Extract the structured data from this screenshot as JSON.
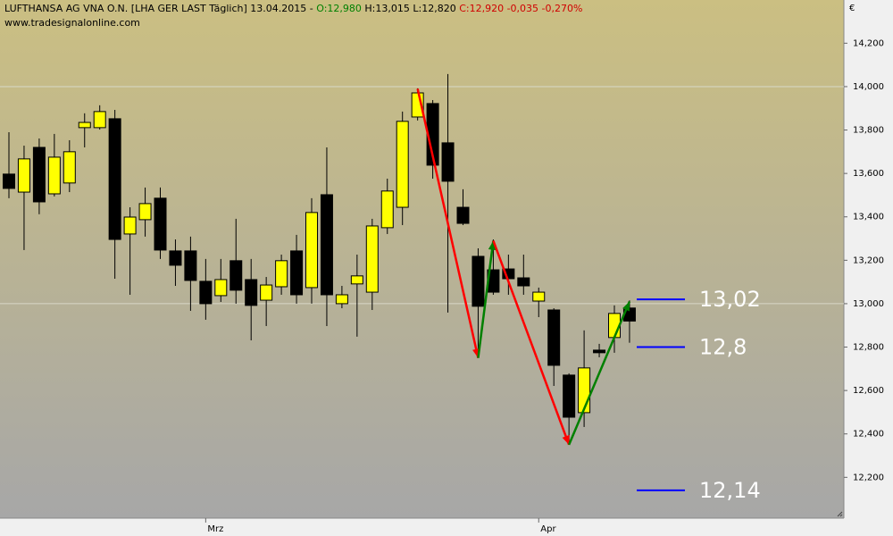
{
  "header": {
    "symbol": "LUFTHANSA AG VNA O.N. [LHA GER LAST Täglich] 13.04.2015 -",
    "open": "O:12,980",
    "high": "H:13,015",
    "low": "L:12,820",
    "change": "C:12,920 -0,035 -0,270%",
    "source": "www.tradesignalonline.com"
  },
  "chart_data": {
    "type": "candlestick",
    "currency": "€",
    "categories": [
      null,
      null,
      null,
      null,
      null,
      null,
      null,
      null,
      null,
      null,
      null,
      null,
      null,
      "Mrz",
      null,
      null,
      null,
      null,
      null,
      null,
      null,
      null,
      null,
      null,
      null,
      null,
      null,
      null,
      null,
      null,
      null,
      null,
      null,
      null,
      null,
      "Apr",
      null,
      null,
      null,
      null,
      null,
      null
    ],
    "open": [
      13.597,
      13.514,
      13.72,
      13.506,
      13.556,
      13.811,
      13.811,
      13.852,
      13.321,
      13.387,
      13.486,
      13.243,
      13.243,
      13.103,
      13.037,
      13.198,
      13.111,
      13.016,
      13.078,
      13.243,
      13.074,
      13.502,
      13.0,
      13.091,
      13.053,
      13.35,
      13.444,
      13.86,
      13.922,
      13.741,
      13.444,
      13.218,
      13.156,
      13.16,
      13.119,
      13.012,
      12.971,
      12.671,
      12.498,
      12.786,
      12.844,
      12.98
    ],
    "high": [
      13.79,
      13.728,
      13.761,
      13.782,
      13.753,
      13.877,
      13.914,
      13.893,
      13.444,
      13.535,
      13.535,
      13.296,
      13.309,
      13.206,
      13.206,
      13.391,
      13.206,
      13.123,
      13.226,
      13.317,
      13.486,
      13.72,
      13.082,
      13.226,
      13.391,
      13.576,
      13.885,
      13.992,
      13.938,
      14.058,
      13.527,
      13.255,
      13.296,
      13.226,
      13.226,
      13.074,
      12.979,
      12.679,
      12.877,
      12.815,
      12.992,
      13.015
    ],
    "low": [
      13.486,
      13.247,
      13.412,
      13.494,
      13.514,
      13.72,
      13.802,
      13.115,
      13.041,
      13.309,
      13.206,
      13.082,
      12.967,
      12.926,
      13.008,
      13.0,
      12.831,
      12.897,
      13.041,
      13.0,
      13.0,
      12.897,
      12.979,
      12.848,
      12.971,
      13.321,
      13.362,
      13.844,
      13.576,
      12.959,
      13.362,
      12.774,
      13.041,
      13.041,
      13.041,
      12.938,
      12.621,
      12.354,
      12.432,
      12.753,
      12.774,
      12.82
    ],
    "close": [
      13.531,
      13.667,
      13.469,
      13.675,
      13.7,
      13.835,
      13.885,
      13.296,
      13.399,
      13.461,
      13.247,
      13.177,
      13.107,
      13.0,
      13.111,
      13.062,
      12.992,
      13.086,
      13.198,
      13.041,
      13.42,
      13.041,
      13.041,
      13.128,
      13.358,
      13.519,
      13.84,
      13.971,
      13.638,
      13.564,
      13.37,
      12.988,
      13.053,
      13.115,
      13.082,
      13.053,
      12.716,
      12.477,
      12.704,
      12.774,
      12.955,
      12.92
    ],
    "up_color": "#ffff00",
    "down_color": "#000000",
    "ylim": [
      12.012,
      14.399
    ],
    "yticks": [
      {
        "value": 12.2,
        "label": "12,200"
      },
      {
        "value": 12.4,
        "label": "12,400"
      },
      {
        "value": 12.6,
        "label": "12,600"
      },
      {
        "value": 12.8,
        "label": "12,800"
      },
      {
        "value": 13.0,
        "label": "13,000"
      },
      {
        "value": 13.2,
        "label": "13,200"
      },
      {
        "value": 13.4,
        "label": "13,400"
      },
      {
        "value": 13.6,
        "label": "13,600"
      },
      {
        "value": 13.8,
        "label": "13,800"
      },
      {
        "value": 14.0,
        "label": "14,000"
      },
      {
        "value": 14.2,
        "label": "14,200"
      }
    ],
    "grid_ticks": [
      13.0,
      14.0
    ],
    "levels": [
      {
        "value": 13.02,
        "label": "13,02"
      },
      {
        "value": 12.8,
        "label": "12,8"
      },
      {
        "value": 12.14,
        "label": "12,14"
      }
    ],
    "level_color": "#0000ff",
    "zigzag": [
      {
        "x": 27,
        "y": 13.99,
        "color": "#ff0000"
      },
      {
        "x": 31,
        "y": 12.75,
        "color": "#008000"
      },
      {
        "x": 32,
        "y": 13.29,
        "color": "#ff0000"
      },
      {
        "x": 37,
        "y": 12.35,
        "color": "#008000"
      },
      {
        "x": 41,
        "y": 13.01,
        "color": null
      }
    ]
  }
}
